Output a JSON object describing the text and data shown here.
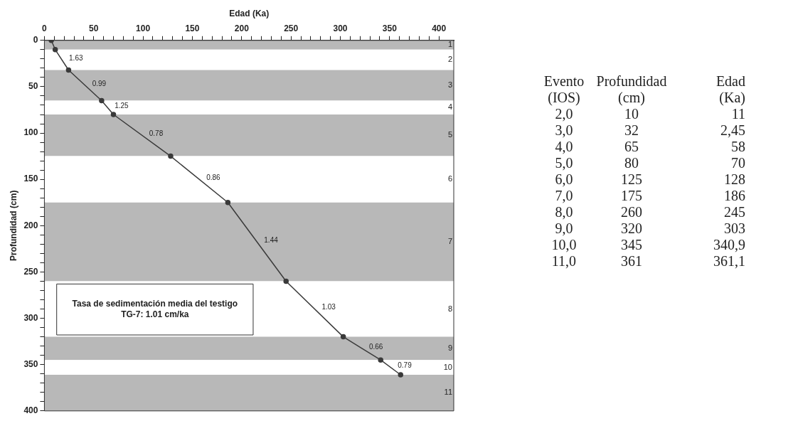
{
  "chart_data": [
    {
      "type": "line",
      "xlabel": "Edad (Ka)",
      "ylabel": "Profundidad (cm)",
      "xlim": [
        0,
        415
      ],
      "ylim": [
        400,
        0
      ],
      "xticks": [
        0,
        {
          "value": 10,
          "label": null
        },
        {
          "value": 20,
          "label": null
        },
        {
          "value": 30,
          "label": null
        },
        {
          "value": 40,
          "label": null
        },
        50,
        {
          "value": 60,
          "label": null
        },
        {
          "value": 70,
          "label": null
        },
        {
          "value": 80,
          "label": null
        },
        {
          "value": 90,
          "label": null
        },
        100,
        {
          "value": 110,
          "label": null
        },
        {
          "value": 120,
          "label": null
        },
        {
          "value": 130,
          "label": null
        },
        {
          "value": 140,
          "label": null
        },
        150,
        {
          "value": 160,
          "label": null
        },
        {
          "value": 170,
          "label": null
        },
        {
          "value": 180,
          "label": null
        },
        {
          "value": 190,
          "label": null
        },
        200,
        {
          "value": 210,
          "label": null
        },
        {
          "value": 220,
          "label": null
        },
        {
          "value": 230,
          "label": null
        },
        {
          "value": 240,
          "label": null
        },
        250,
        {
          "value": 260,
          "label": null
        },
        {
          "value": 270,
          "label": null
        },
        {
          "value": 280,
          "label": null
        },
        {
          "value": 290,
          "label": null
        },
        300,
        {
          "value": 310,
          "label": null
        },
        {
          "value": 320,
          "label": null
        },
        {
          "value": 330,
          "label": null
        },
        {
          "value": 340,
          "label": null
        },
        350,
        {
          "value": 360,
          "label": null
        },
        {
          "value": 370,
          "label": null
        },
        {
          "value": 380,
          "label": null
        },
        {
          "value": 390,
          "label": null
        },
        400
      ],
      "yticks": [
        0,
        {
          "value": 10,
          "label": null
        },
        {
          "value": 20,
          "label": null
        },
        {
          "value": 30,
          "label": null
        },
        {
          "value": 40,
          "label": null
        },
        50,
        {
          "value": 60,
          "label": null
        },
        {
          "value": 70,
          "label": null
        },
        {
          "value": 80,
          "label": null
        },
        {
          "value": 90,
          "label": null
        },
        100,
        {
          "value": 110,
          "label": null
        },
        {
          "value": 120,
          "label": null
        },
        {
          "value": 130,
          "label": null
        },
        {
          "value": 140,
          "label": null
        },
        150,
        {
          "value": 160,
          "label": null
        },
        {
          "value": 170,
          "label": null
        },
        {
          "value": 180,
          "label": null
        },
        {
          "value": 190,
          "label": null
        },
        200,
        {
          "value": 210,
          "label": null
        },
        {
          "value": 220,
          "label": null
        },
        {
          "value": 230,
          "label": null
        },
        {
          "value": 240,
          "label": null
        },
        250,
        {
          "value": 260,
          "label": null
        },
        {
          "value": 270,
          "label": null
        },
        {
          "value": 280,
          "label": null
        },
        {
          "value": 290,
          "label": null
        },
        300,
        {
          "value": 310,
          "label": null
        },
        {
          "value": 320,
          "label": null
        },
        {
          "value": 330,
          "label": null
        },
        {
          "value": 340,
          "label": null
        },
        350,
        {
          "value": 360,
          "label": null
        },
        {
          "value": 370,
          "label": null
        },
        {
          "value": 380,
          "label": null
        },
        {
          "value": 390,
          "label": null
        },
        400
      ],
      "legend": false,
      "marker": "circle",
      "line_style": "solid",
      "series": [
        {
          "color": "#3a3a3a",
          "x": [
            7,
            11,
            24.5,
            58,
            70,
            128,
            186,
            245,
            303,
            340.9,
            361.1
          ],
          "values": [
            0,
            10,
            32,
            65,
            80,
            125,
            175,
            260,
            320,
            345,
            361
          ]
        }
      ],
      "bands": [
        {
          "axis": "y",
          "from": 0,
          "to": 10,
          "label": "1",
          "color": "#b8b8b8"
        },
        {
          "axis": "y",
          "from": 10,
          "to": 32,
          "label": "2",
          "color": "#ffffff"
        },
        {
          "axis": "y",
          "from": 32,
          "to": 65,
          "label": "3",
          "color": "#b8b8b8"
        },
        {
          "axis": "y",
          "from": 65,
          "to": 80,
          "label": "4",
          "color": "#ffffff"
        },
        {
          "axis": "y",
          "from": 80,
          "to": 125,
          "label": "5",
          "color": "#b8b8b8"
        },
        {
          "axis": "y",
          "from": 125,
          "to": 175,
          "label": "6",
          "color": "#ffffff"
        },
        {
          "axis": "y",
          "from": 175,
          "to": 260,
          "label": "7",
          "color": "#b8b8b8"
        },
        {
          "axis": "y",
          "from": 260,
          "to": 320,
          "label": "8",
          "color": "#ffffff"
        },
        {
          "axis": "y",
          "from": 320,
          "to": 345,
          "label": "9",
          "color": "#b8b8b8"
        },
        {
          "axis": "y",
          "from": 345,
          "to": 361,
          "label": "10",
          "color": "#ffffff"
        },
        {
          "axis": "y",
          "from": 361,
          "to": 400,
          "label": "11",
          "color": "#b8b8b8"
        }
      ],
      "annotations": [
        {
          "text": "1.63",
          "x": 17.75,
          "y": 21
        },
        {
          "text": "0.99",
          "x": 41.25,
          "y": 48.5
        },
        {
          "text": "1.25",
          "x": 64,
          "y": 72.5
        },
        {
          "text": "0.78",
          "x": 99,
          "y": 102.5
        },
        {
          "text": "0.86",
          "x": 157,
          "y": 150
        },
        {
          "text": "1.44",
          "x": 215.5,
          "y": 217.5
        },
        {
          "text": "1.03",
          "x": 274,
          "y": 290
        },
        {
          "text": "0.66",
          "x": 321.95,
          "y": 332.5
        },
        {
          "text": "0.79",
          "x": 351,
          "y": 353
        },
        "Tasa de sedimentación media del testigo TG-7: 1.01 cm/ka",
        "Evento",
        "Profundidad",
        "Edad",
        "(IOS)",
        "(cm)",
        "(Ka)",
        "2,0",
        "10",
        "11",
        "3,0",
        "32",
        "2,45",
        "4,0",
        "65",
        "58",
        "5,0",
        "80",
        "70",
        "6,0",
        "125",
        "128",
        "7,0",
        "175",
        "186",
        "8,0",
        "260",
        "245",
        "9,0",
        "320",
        "303",
        "10,0",
        "345",
        "340,9",
        "11,0",
        "361",
        "361,1"
      ]
    }
  ]
}
